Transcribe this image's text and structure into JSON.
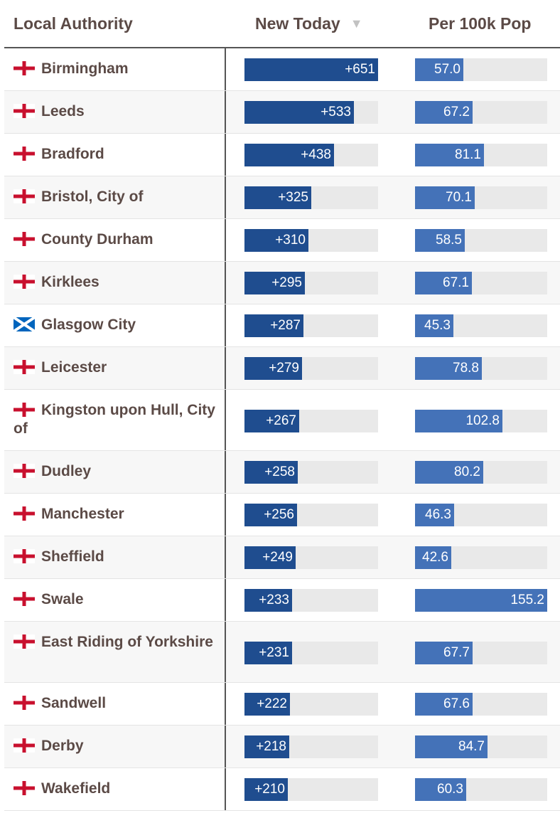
{
  "header": {
    "col_name": "Local Authority",
    "col_new": "New Today",
    "col_per": "Per 100k Pop",
    "sort_icon": "sort-descending-icon"
  },
  "colors": {
    "new_bar": "#1f4d8f",
    "per_bar": "#4472b8",
    "bar_track": "#e9e9e9",
    "england_cross": "#c8102e",
    "scotland_blue": "#0065bd"
  },
  "chart_data": {
    "type": "table",
    "columns": [
      "Local Authority",
      "New Today",
      "Per 100k Pop"
    ],
    "new_max": 651,
    "per_max": 155.2,
    "rows": [
      {
        "name": "Birmingham",
        "flag": "england-flag-icon",
        "new_today": 651,
        "new_label": "+651",
        "per_100k": 57.0,
        "per_label": "57.0"
      },
      {
        "name": "Leeds",
        "flag": "england-flag-icon",
        "new_today": 533,
        "new_label": "+533",
        "per_100k": 67.2,
        "per_label": "67.2"
      },
      {
        "name": "Bradford",
        "flag": "england-flag-icon",
        "new_today": 438,
        "new_label": "+438",
        "per_100k": 81.1,
        "per_label": "81.1"
      },
      {
        "name": "Bristol, City of",
        "flag": "england-flag-icon",
        "new_today": 325,
        "new_label": "+325",
        "per_100k": 70.1,
        "per_label": "70.1"
      },
      {
        "name": "County Durham",
        "flag": "england-flag-icon",
        "new_today": 310,
        "new_label": "+310",
        "per_100k": 58.5,
        "per_label": "58.5"
      },
      {
        "name": "Kirklees",
        "flag": "england-flag-icon",
        "new_today": 295,
        "new_label": "+295",
        "per_100k": 67.1,
        "per_label": "67.1"
      },
      {
        "name": "Glasgow City",
        "flag": "scotland-flag-icon",
        "new_today": 287,
        "new_label": "+287",
        "per_100k": 45.3,
        "per_label": "45.3"
      },
      {
        "name": "Leicester",
        "flag": "england-flag-icon",
        "new_today": 279,
        "new_label": "+279",
        "per_100k": 78.8,
        "per_label": "78.8"
      },
      {
        "name": "Kingston upon Hull, City of",
        "flag": "england-flag-icon",
        "new_today": 267,
        "new_label": "+267",
        "per_100k": 102.8,
        "per_label": "102.8"
      },
      {
        "name": "Dudley",
        "flag": "england-flag-icon",
        "new_today": 258,
        "new_label": "+258",
        "per_100k": 80.2,
        "per_label": "80.2"
      },
      {
        "name": "Manchester",
        "flag": "england-flag-icon",
        "new_today": 256,
        "new_label": "+256",
        "per_100k": 46.3,
        "per_label": "46.3"
      },
      {
        "name": "Sheffield",
        "flag": "england-flag-icon",
        "new_today": 249,
        "new_label": "+249",
        "per_100k": 42.6,
        "per_label": "42.6"
      },
      {
        "name": "Swale",
        "flag": "england-flag-icon",
        "new_today": 233,
        "new_label": "+233",
        "per_100k": 155.2,
        "per_label": "155.2"
      },
      {
        "name": "East Riding of Yorkshire",
        "flag": "england-flag-icon",
        "new_today": 231,
        "new_label": "+231",
        "per_100k": 67.7,
        "per_label": "67.7"
      },
      {
        "name": "Sandwell",
        "flag": "england-flag-icon",
        "new_today": 222,
        "new_label": "+222",
        "per_100k": 67.6,
        "per_label": "67.6"
      },
      {
        "name": "Derby",
        "flag": "england-flag-icon",
        "new_today": 218,
        "new_label": "+218",
        "per_100k": 84.7,
        "per_label": "84.7"
      },
      {
        "name": "Wakefield",
        "flag": "england-flag-icon",
        "new_today": 210,
        "new_label": "+210",
        "per_100k": 60.3,
        "per_label": "60.3"
      }
    ]
  }
}
